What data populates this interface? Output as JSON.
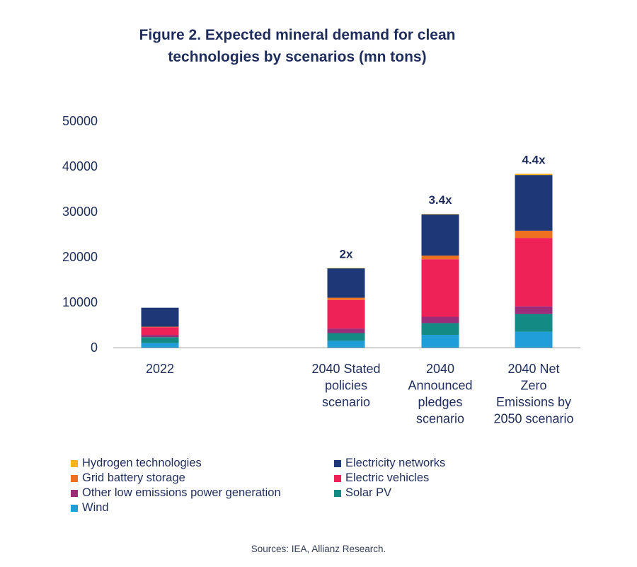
{
  "title_line1": "Figure 2. Expected mineral demand for clean",
  "title_line2": "technologies by scenarios (mn tons)",
  "source": "Sources: IEA, Allianz Research.",
  "chart_data": {
    "type": "bar",
    "stacked": true,
    "title": "Figure 2. Expected mineral demand for clean technologies by scenarios (mn tons)",
    "categories": [
      [
        "2022"
      ],
      [
        "2040 Stated",
        "policies",
        "scenario"
      ],
      [
        "2040",
        "Announced",
        "pledges",
        "scenario"
      ],
      [
        "2040 Net",
        "Zero",
        "Emissions by",
        "2050 scenario"
      ]
    ],
    "ylim": [
      0,
      50000
    ],
    "yticks": [
      0,
      10000,
      20000,
      30000,
      40000,
      50000
    ],
    "annotations": [
      "",
      "2x",
      "3.4x",
      "4.4x"
    ],
    "series": [
      {
        "name": "Wind",
        "color": "#1f9ed9",
        "values": [
          1000,
          1500,
          2800,
          3500
        ]
      },
      {
        "name": "Solar PV",
        "color": "#138a83",
        "values": [
          1300,
          1700,
          2600,
          3900
        ]
      },
      {
        "name": "Other low emissions power generation",
        "color": "#9b2c7a",
        "values": [
          500,
          1000,
          1400,
          1700
        ]
      },
      {
        "name": "Electric vehicles",
        "color": "#ef2257",
        "values": [
          1700,
          6300,
          12700,
          15100
        ]
      },
      {
        "name": "Grid battery storage",
        "color": "#f07022",
        "values": [
          100,
          500,
          800,
          1600
        ]
      },
      {
        "name": "Electricity networks",
        "color": "#1e3877",
        "values": [
          4200,
          6500,
          9100,
          12300
        ]
      },
      {
        "name": "Hydrogen technologies",
        "color": "#f4b41a",
        "values": [
          0,
          50,
          100,
          250
        ]
      }
    ]
  },
  "legend": [
    {
      "label": "Hydrogen technologies",
      "color": "#f4b41a"
    },
    {
      "label": "Electricity networks",
      "color": "#1e3877"
    },
    {
      "label": "Grid battery storage",
      "color": "#f07022"
    },
    {
      "label": "Electric vehicles",
      "color": "#ef2257"
    },
    {
      "label": "Other low emissions power generation",
      "color": "#9b2c7a"
    },
    {
      "label": "Solar PV",
      "color": "#138a83"
    },
    {
      "label": "Wind",
      "color": "#1f9ed9"
    }
  ]
}
